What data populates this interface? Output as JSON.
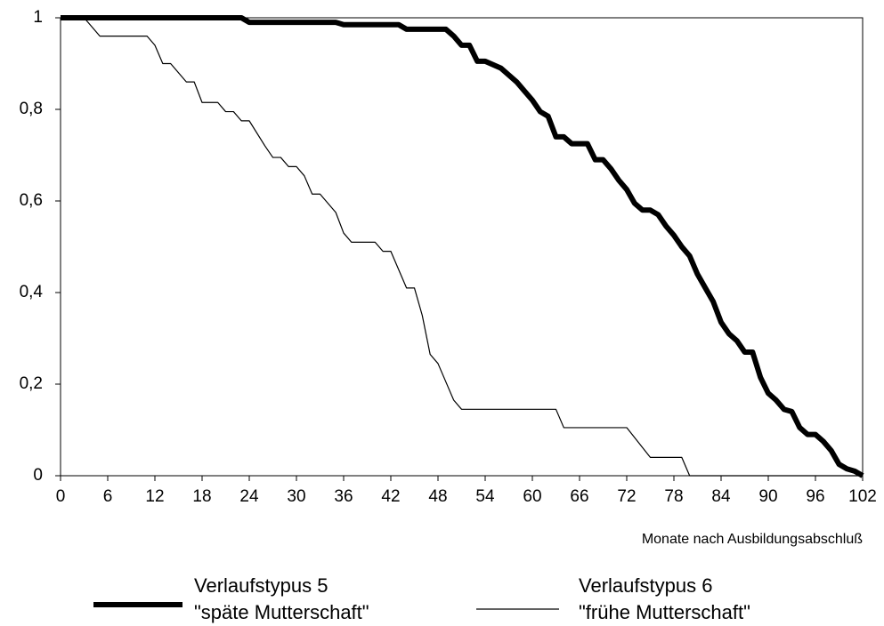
{
  "chart_data": {
    "type": "line",
    "x_label": "Monate nach Ausbildungsabschluß",
    "xlim": [
      0,
      102
    ],
    "xticks": [
      0,
      6,
      12,
      18,
      24,
      30,
      36,
      42,
      48,
      54,
      60,
      66,
      72,
      78,
      84,
      90,
      96,
      102
    ],
    "ylim": [
      0,
      1
    ],
    "yticks": [
      0,
      {
        "value": 0.2,
        "label": "0,2"
      },
      {
        "value": 0.4,
        "label": "0,4"
      },
      {
        "value": 0.6,
        "label": "0,6"
      },
      {
        "value": 0.8,
        "label": "0,8"
      },
      1
    ],
    "series": [
      {
        "name": "Verlaufstypus 5",
        "description": "\"späte Mutterschaft\"",
        "color": "#000000",
        "width": 6,
        "x": [
          0,
          23,
          24,
          35,
          36,
          43,
          44,
          49,
          50,
          51,
          52,
          53,
          54,
          56,
          57,
          58,
          59,
          60,
          61,
          62,
          63,
          64,
          65,
          67,
          68,
          69,
          70,
          71,
          72,
          73,
          74,
          75,
          76,
          77,
          78,
          79,
          80,
          81,
          82,
          83,
          84,
          85,
          86,
          87,
          88,
          89,
          90,
          91,
          92,
          93,
          94,
          95,
          96,
          97,
          98,
          99,
          100,
          101,
          102
        ],
        "values": [
          1,
          1,
          0.99,
          0.99,
          0.985,
          0.985,
          0.975,
          0.975,
          0.96,
          0.94,
          0.94,
          0.905,
          0.905,
          0.89,
          0.875,
          0.86,
          0.84,
          0.82,
          0.795,
          0.785,
          0.74,
          0.74,
          0.725,
          0.725,
          0.69,
          0.69,
          0.67,
          0.645,
          0.625,
          0.595,
          0.58,
          0.58,
          0.57,
          0.545,
          0.525,
          0.5,
          0.48,
          0.44,
          0.41,
          0.38,
          0.335,
          0.31,
          0.295,
          0.27,
          0.27,
          0.215,
          0.18,
          0.165,
          0.145,
          0.14,
          0.105,
          0.09,
          0.09,
          0.075,
          0.055,
          0.025,
          0.015,
          0.01,
          0
        ]
      },
      {
        "name": "Verlaufstypus 6",
        "description": "\"frühe Mutterschaft\"",
        "color": "#000000",
        "width": 1.2,
        "x": [
          0,
          3,
          5,
          11,
          12,
          13,
          14,
          16,
          17,
          18,
          20,
          21,
          22,
          23,
          24,
          26,
          27,
          28,
          29,
          30,
          31,
          32,
          33,
          35,
          36,
          37,
          40,
          41,
          42,
          43,
          44,
          45,
          46,
          47,
          48,
          50,
          51,
          63,
          64,
          72,
          75,
          79,
          80,
          102
        ],
        "values": [
          1,
          1,
          0.96,
          0.96,
          0.94,
          0.9,
          0.9,
          0.86,
          0.86,
          0.815,
          0.815,
          0.795,
          0.795,
          0.775,
          0.775,
          0.72,
          0.695,
          0.695,
          0.675,
          0.675,
          0.655,
          0.615,
          0.615,
          0.575,
          0.53,
          0.51,
          0.51,
          0.49,
          0.49,
          0.45,
          0.41,
          0.41,
          0.35,
          0.265,
          0.245,
          0.165,
          0.145,
          0.145,
          0.105,
          0.105,
          0.04,
          0.04,
          0,
          0
        ]
      }
    ]
  }
}
